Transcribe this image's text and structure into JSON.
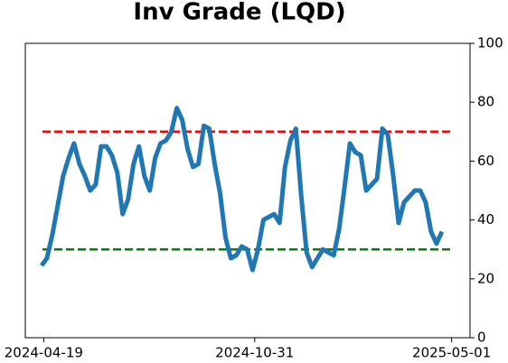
{
  "chart_data": {
    "type": "line",
    "title": "Inv Grade (LQD)",
    "x": [
      "2024-04-17",
      "2024-04-22",
      "2024-04-27",
      "2024-05-02",
      "2024-05-07",
      "2024-05-12",
      "2024-05-17",
      "2024-05-22",
      "2024-05-27",
      "2024-06-01",
      "2024-06-06",
      "2024-06-11",
      "2024-06-16",
      "2024-06-21",
      "2024-06-26",
      "2024-07-01",
      "2024-07-06",
      "2024-07-11",
      "2024-07-16",
      "2024-07-21",
      "2024-07-26",
      "2024-07-31",
      "2024-08-05",
      "2024-08-10",
      "2024-08-15",
      "2024-08-20",
      "2024-08-25",
      "2024-08-30",
      "2024-09-04",
      "2024-09-09",
      "2024-09-14",
      "2024-09-19",
      "2024-09-24",
      "2024-09-29",
      "2024-10-04",
      "2024-10-09",
      "2024-10-14",
      "2024-10-19",
      "2024-10-24",
      "2024-10-29",
      "2024-11-03",
      "2024-11-08",
      "2024-11-13",
      "2024-11-18",
      "2024-11-23",
      "2024-11-28",
      "2024-12-03",
      "2024-12-08",
      "2024-12-13",
      "2024-12-18",
      "2024-12-23",
      "2024-12-28",
      "2025-01-02",
      "2025-01-07",
      "2025-01-12",
      "2025-01-17",
      "2025-01-22",
      "2025-01-27",
      "2025-02-01",
      "2025-02-06",
      "2025-02-11",
      "2025-02-16",
      "2025-02-21",
      "2025-02-26",
      "2025-03-03",
      "2025-03-08",
      "2025-03-13",
      "2025-03-18",
      "2025-03-23",
      "2025-03-28",
      "2025-04-02",
      "2025-04-07",
      "2025-04-12",
      "2025-04-17",
      "2025-04-22"
    ],
    "values": [
      24.5,
      27,
      35,
      45,
      55,
      61,
      66,
      59,
      55,
      50,
      52,
      65,
      65,
      62,
      56,
      42,
      47,
      59,
      65,
      55,
      50,
      61,
      66,
      67,
      70,
      78,
      74,
      64,
      58,
      59,
      72,
      71,
      59,
      49,
      34,
      27,
      28,
      31,
      30,
      23,
      30,
      40,
      41,
      42,
      39,
      58,
      67,
      71,
      48,
      29,
      24,
      27,
      30,
      29,
      28,
      37,
      51,
      66,
      63,
      62,
      50,
      52,
      54,
      71,
      69,
      55,
      39,
      46,
      48,
      50,
      50,
      46,
      36,
      32,
      36
    ],
    "color": "#1f77b4",
    "hlines": [
      {
        "value": 70,
        "color": "#ff0000"
      },
      {
        "value": 30,
        "color": "#008000"
      }
    ],
    "xlim": [
      "2024-04-02",
      "2025-05-18"
    ],
    "xticks": [
      "2024-04-19",
      "2024-10-31",
      "2025-05-01"
    ],
    "ylim": [
      0,
      100
    ],
    "yticks": [
      0,
      20,
      40,
      60,
      80,
      100
    ],
    "y_axis_side": "right"
  }
}
